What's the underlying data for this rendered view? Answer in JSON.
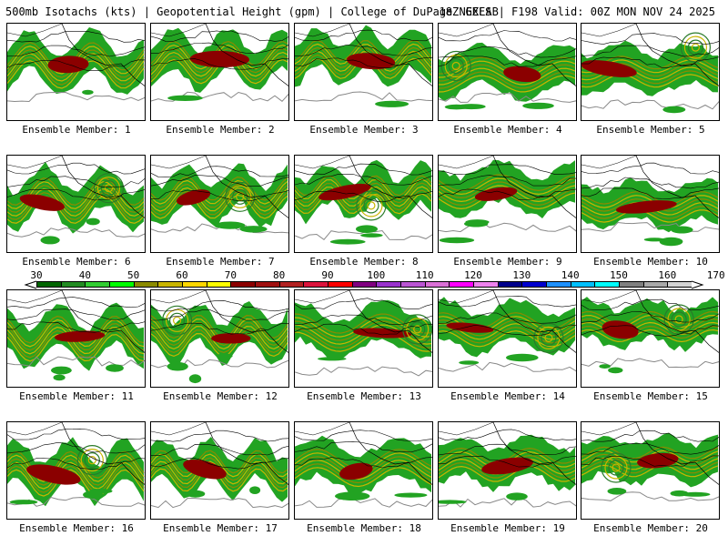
{
  "header": {
    "left": "500mb Isotachs (kts) | Geopotential Height (gpm) | College of DuPage NEXLAB",
    "right": "18Z GEFS | F198 Valid: 00Z MON NOV 24 2025"
  },
  "colorbar": {
    "labels": [
      "30",
      "40",
      "50",
      "60",
      "70",
      "80",
      "90",
      "100",
      "110",
      "120",
      "130",
      "140",
      "150",
      "160",
      "170"
    ],
    "colors": [
      "#006400",
      "#228b22",
      "#32cd32",
      "#00ff00",
      "#8b8b00",
      "#c8b400",
      "#ffd700",
      "#ffff00",
      "#8b0000",
      "#a01010",
      "#b22222",
      "#dc143c",
      "#ff0000",
      "#800080",
      "#9932cc",
      "#ba55d3",
      "#da70d6",
      "#ff00ff",
      "#ee82ee",
      "#00008b",
      "#0000cd",
      "#1e90ff",
      "#00bfff",
      "#00ffff",
      "#808080",
      "#a9a9a9",
      "#d3d3d3"
    ]
  },
  "members": [
    {
      "label": "Ensemble Member: 1"
    },
    {
      "label": "Ensemble Member: 2"
    },
    {
      "label": "Ensemble Member: 3"
    },
    {
      "label": "Ensemble Member: 4"
    },
    {
      "label": "Ensemble Member: 5"
    },
    {
      "label": "Ensemble Member: 6"
    },
    {
      "label": "Ensemble Member: 7"
    },
    {
      "label": "Ensemble Member: 8"
    },
    {
      "label": "Ensemble Member: 9"
    },
    {
      "label": "Ensemble Member: 10"
    },
    {
      "label": "Ensemble Member: 11"
    },
    {
      "label": "Ensemble Member: 12"
    },
    {
      "label": "Ensemble Member: 13"
    },
    {
      "label": "Ensemble Member: 14"
    },
    {
      "label": "Ensemble Member: 15"
    },
    {
      "label": "Ensemble Member: 16"
    },
    {
      "label": "Ensemble Member: 17"
    },
    {
      "label": "Ensemble Member: 18"
    },
    {
      "label": "Ensemble Member: 19"
    },
    {
      "label": "Ensemble Member: 20"
    }
  ]
}
